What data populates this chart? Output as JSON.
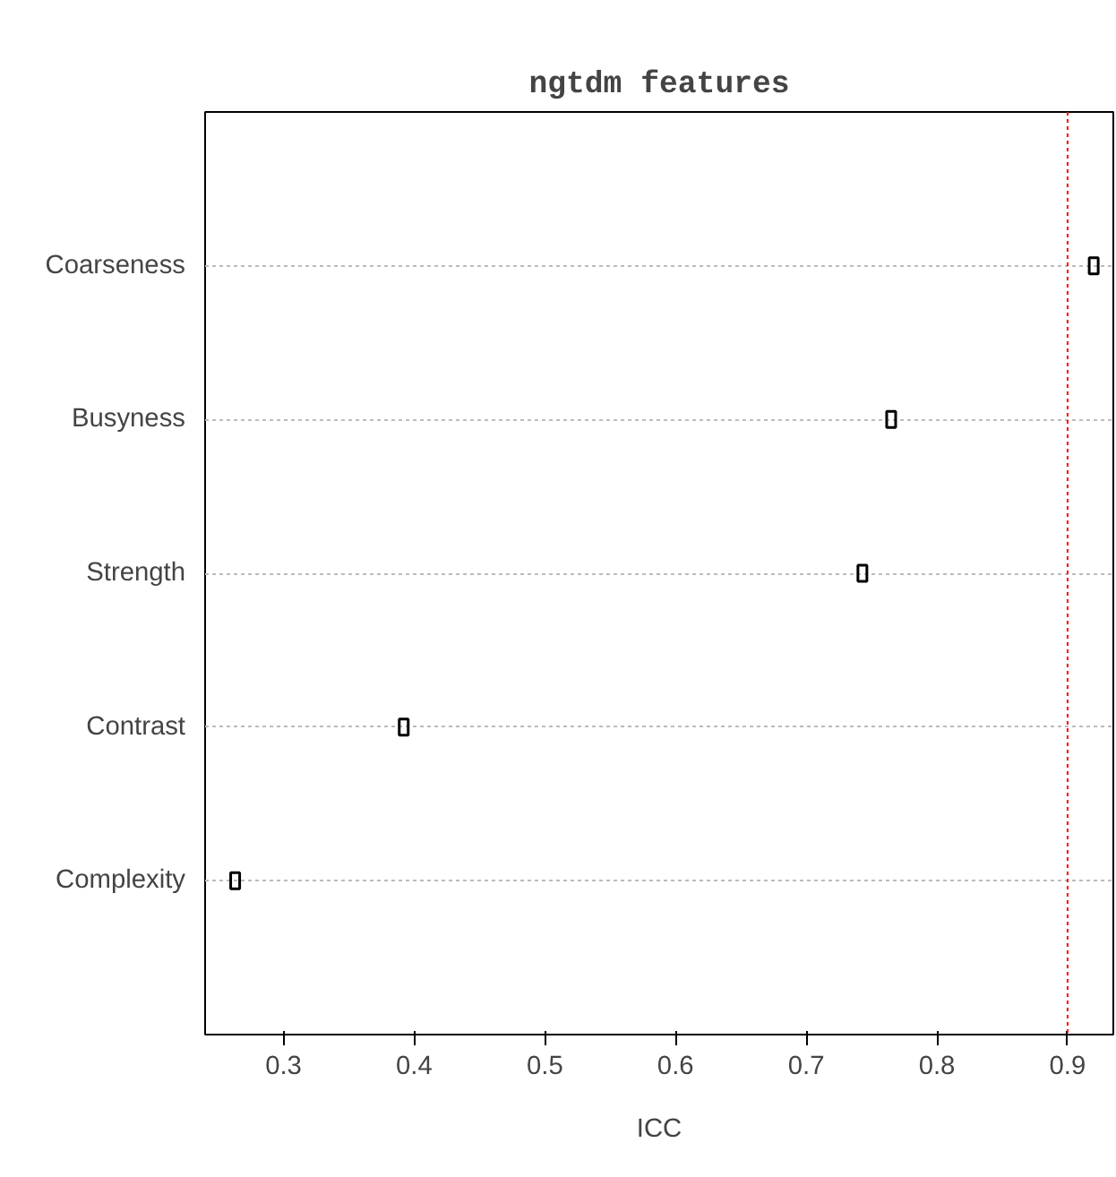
{
  "chart_data": {
    "type": "scatter",
    "orientation": "horizontal",
    "title": "ngtdm features",
    "xlabel": "ICC",
    "categories": [
      "Coarseness",
      "Busyness",
      "Strength",
      "Contrast",
      "Complexity"
    ],
    "values": [
      0.92,
      0.765,
      0.743,
      0.392,
      0.263
    ],
    "color": "#000000",
    "marker": "square",
    "xlim": [
      0.24,
      0.935
    ],
    "xticks": [
      0.3,
      0.4,
      0.5,
      0.6,
      0.7,
      0.8,
      0.9
    ],
    "ref_lines": [
      {
        "axis": "x",
        "value": 0.9,
        "color": "#ff0000",
        "line_style": "dotted"
      }
    ],
    "grid": "y"
  }
}
